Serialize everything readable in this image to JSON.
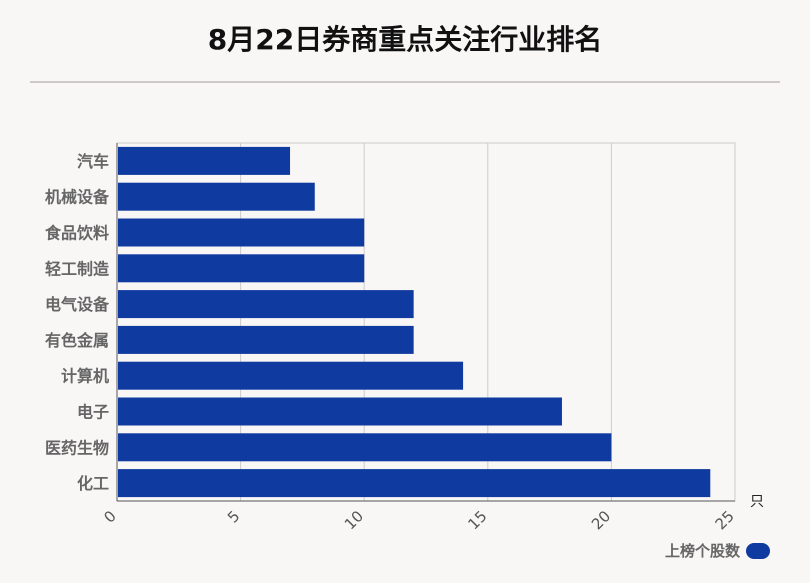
{
  "title": "8月22日券商重点关注行业排名",
  "chart_data": {
    "type": "bar",
    "orientation": "horizontal",
    "categories": [
      "汽车",
      "机械设备",
      "食品饮料",
      "轻工制造",
      "电气设备",
      "有色金属",
      "计算机",
      "电子",
      "医药生物",
      "化工"
    ],
    "series": [
      {
        "name": "上榜个股数",
        "values": [
          7,
          8,
          10,
          10,
          12,
          12,
          14,
          18,
          20,
          24
        ]
      }
    ],
    "xlim": [
      0,
      25
    ],
    "xticks": [
      "0",
      "5",
      "10",
      "15",
      "20",
      "25"
    ],
    "unit": "只",
    "grid": true,
    "legend_position": "bottom-right",
    "bar_color": "#0f3aa0"
  }
}
